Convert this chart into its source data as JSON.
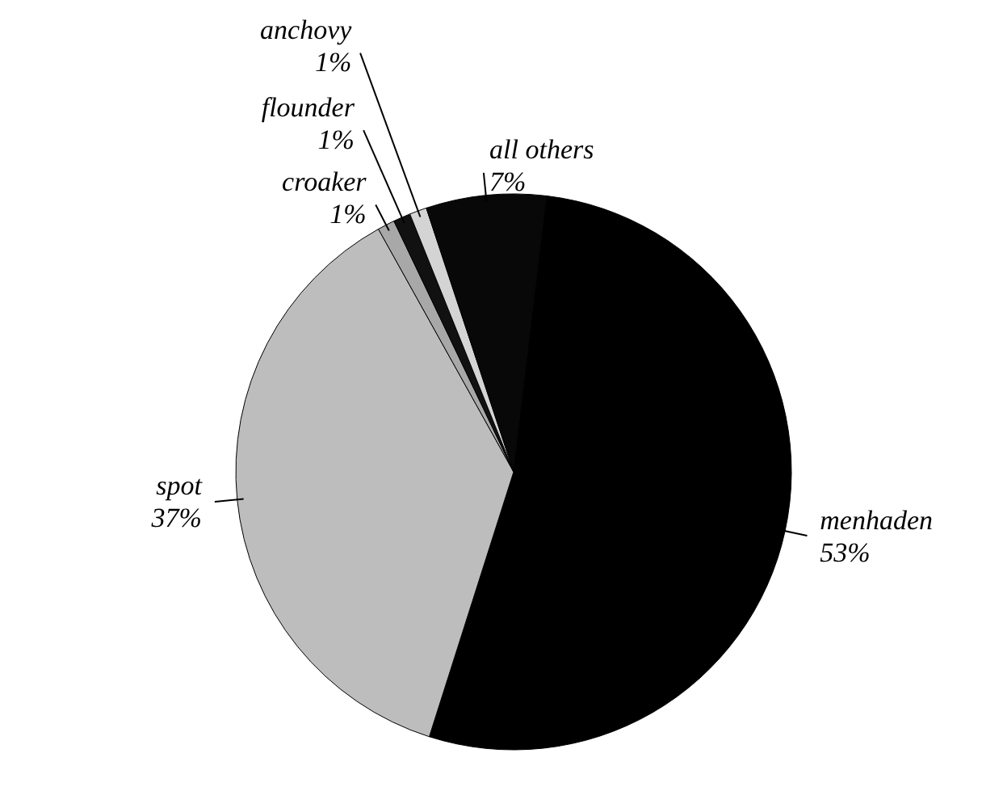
{
  "chart_data": {
    "type": "pie",
    "categories": [
      "menhaden",
      "spot",
      "croaker",
      "flounder",
      "anchovy",
      "all others"
    ],
    "values": [
      53,
      37,
      1,
      1,
      1,
      7
    ],
    "value_labels": [
      "53%",
      "37%",
      "1%",
      "1%",
      "1%",
      "7%"
    ],
    "colors": [
      "#000000",
      "#bdbdbd",
      "#a8a8a8",
      "#111111",
      "#d4d4d4",
      "#080808"
    ]
  }
}
